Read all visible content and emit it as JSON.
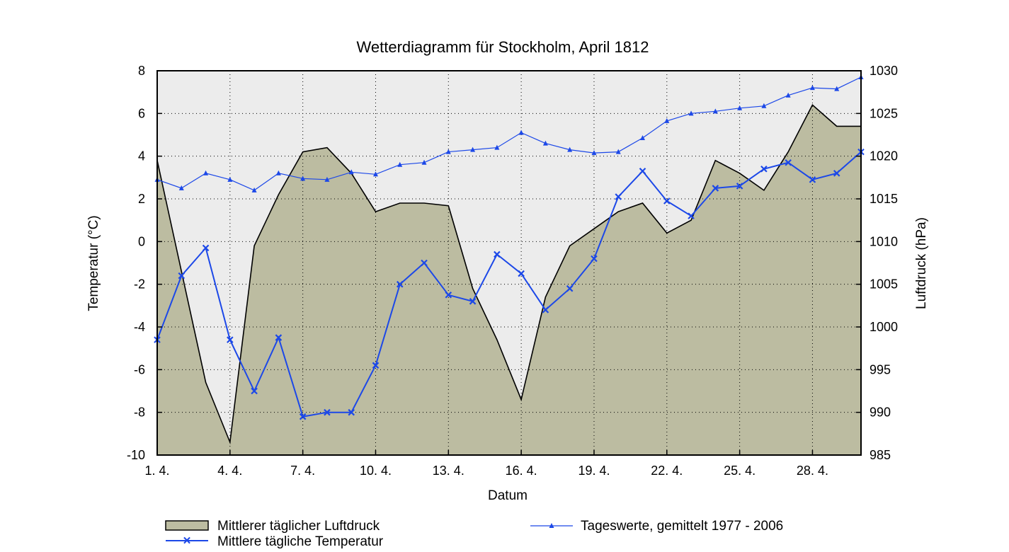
{
  "chart_data": {
    "type": "area+line",
    "title": "Wetterdiagramm für Stockholm, April 1812",
    "xlabel": "Datum",
    "ylabel_left": "Temperatur (°C)",
    "ylabel_right": "Luftdruck (hPa)",
    "xlim": [
      1,
      30
    ],
    "ylim_left": [
      -10,
      8
    ],
    "ylim_right": [
      985,
      1030
    ],
    "x_ticks": [
      1,
      4,
      7,
      10,
      13,
      16,
      19,
      22,
      25,
      28
    ],
    "x_tick_labels": [
      "1. 4.",
      "4. 4.",
      "7. 4.",
      "10. 4.",
      "13. 4.",
      "16. 4.",
      "19. 4.",
      "22. 4.",
      "25. 4.",
      "28. 4."
    ],
    "y_left_ticks": [
      8,
      6,
      4,
      2,
      0,
      -2,
      -4,
      -6,
      -8,
      -10
    ],
    "y_left_tick_labels": [
      "8",
      "6",
      "4",
      "2",
      "0",
      "-2",
      "-4",
      "-6",
      "-8",
      "-10"
    ],
    "y_right_ticks": [
      1030,
      1025,
      1020,
      1015,
      1010,
      1005,
      1000,
      995,
      990,
      985
    ],
    "y_right_tick_labels": [
      "1030",
      "1025",
      "1020",
      "1015",
      "1010",
      "1005",
      "1000",
      "995",
      "990",
      "985"
    ],
    "grid": true,
    "days": [
      1,
      2,
      3,
      4,
      5,
      6,
      7,
      8,
      9,
      10,
      11,
      12,
      13,
      14,
      15,
      16,
      17,
      18,
      19,
      20,
      21,
      22,
      23,
      24,
      25,
      26,
      27,
      28,
      29,
      30
    ],
    "series": [
      {
        "name": "Mittlerer täglicher Luftdruck",
        "axis": "right",
        "style": "area",
        "color": "#bcbca1",
        "values": [
          1019.5,
          1006.5,
          993.5,
          986.5,
          1009.5,
          1015.5,
          1020.5,
          1021,
          1018,
          1013.5,
          1014.5,
          1014.5,
          1014.2,
          1004.5,
          998.5,
          991.5,
          1003.5,
          1009.5,
          1011.5,
          1013.5,
          1014.5,
          1011,
          1012.5,
          1019.5,
          1018,
          1016,
          1020.5,
          1026,
          1023.5,
          1023.5
        ]
      },
      {
        "name": "Mittlere tägliche Temperatur",
        "axis": "left",
        "style": "line-x",
        "color": "#1c48e8",
        "values": [
          -4.6,
          -1.6,
          -0.3,
          -4.6,
          -7.0,
          -4.5,
          -8.2,
          -8.0,
          -8.0,
          -5.8,
          -2.0,
          -1.0,
          -2.5,
          -2.8,
          -0.6,
          -1.5,
          -3.2,
          -2.2,
          -0.8,
          2.1,
          3.3,
          1.9,
          1.2,
          2.5,
          2.6,
          3.4,
          3.7,
          2.9,
          3.2,
          4.2
        ]
      },
      {
        "name": "Tageswerte, gemittelt 1977 - 2006",
        "axis": "left",
        "style": "line-triangle",
        "color": "#1c48e8",
        "values": [
          2.9,
          2.5,
          3.2,
          2.9,
          2.4,
          3.2,
          2.95,
          2.9,
          3.25,
          3.15,
          3.6,
          3.7,
          4.2,
          4.3,
          4.4,
          5.1,
          4.6,
          4.3,
          4.15,
          4.2,
          4.85,
          5.65,
          6.0,
          6.1,
          6.25,
          6.35,
          6.85,
          7.2,
          7.15,
          7.7
        ]
      }
    ],
    "legend": {
      "placement": "bottom",
      "entries": [
        "Mittlerer täglicher Luftdruck",
        "Mittlere tägliche Temperatur",
        "Tageswerte, gemittelt 1977 - 2006"
      ]
    }
  },
  "colors": {
    "plot_background": "#ececec",
    "pressure_fill": "#bcbca1",
    "line_blue": "#1c48e8"
  }
}
